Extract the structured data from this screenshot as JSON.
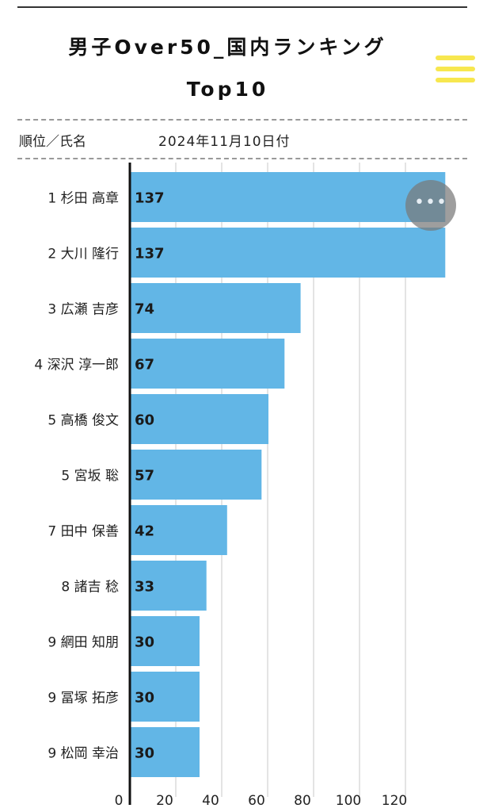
{
  "header": {
    "title_line1": "男子Over50_国内ランキング",
    "title_line2": "Top10",
    "rank_label": "順位／氏名",
    "date_label": "2024年11月10日付",
    "menu_icon": "hamburger-menu-icon",
    "more_icon": "more-options-icon"
  },
  "colors": {
    "bar": "#62b6e6",
    "menu": "#f7e74f"
  },
  "chart_data": {
    "type": "bar",
    "orientation": "horizontal",
    "categories": [
      "1 杉田 高章",
      "2 大川 隆行",
      "3 広瀬 吉彦",
      "4 深沢 淳一郎",
      "5 高橋 俊文",
      "5 宮坂 聡",
      "7 田中 保善",
      "8 諸吉 稔",
      "9 網田 知朋",
      "9 冨塚 拓彦",
      "9 松岡 幸治"
    ],
    "values": [
      137,
      137,
      74,
      67,
      60,
      57,
      42,
      33,
      30,
      30,
      30
    ],
    "xticks": [
      0,
      20,
      40,
      60,
      80,
      100,
      120
    ],
    "xlim": [
      0,
      137
    ],
    "grid": true
  }
}
